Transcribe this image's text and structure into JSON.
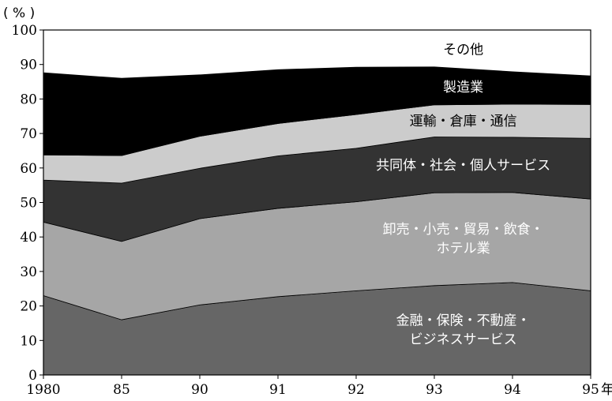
{
  "chart_data": {
    "type": "area",
    "stacked": true,
    "unit_label": "( % )",
    "x": [
      "1980",
      "85",
      "90",
      "91",
      "92",
      "93",
      "94",
      "95"
    ],
    "x_suffix": "年",
    "ylim": [
      0,
      100
    ],
    "yticks": [
      0,
      10,
      20,
      30,
      40,
      50,
      60,
      70,
      80,
      90,
      100
    ],
    "grid": false,
    "series": [
      {
        "name": "金融・保険・不動産・|ビジネスサービス",
        "color": "#666666",
        "text_color": "#ffffff",
        "values": [
          23,
          16,
          20.3,
          22.7,
          24.4,
          25.9,
          26.8,
          24.4
        ]
      },
      {
        "name": "卸売・小売・貿易・飲食・|ホテル業",
        "color": "#a6a6a6",
        "text_color": "#ffffff",
        "values": [
          21.3,
          22.7,
          25,
          25.6,
          25.8,
          26.9,
          26.1,
          26.6
        ]
      },
      {
        "name": "共同体・社会・個人サービス",
        "color": "#333333",
        "text_color": "#ffffff",
        "values": [
          12.2,
          16.9,
          14.6,
          15.2,
          15.5,
          16.2,
          16,
          17.6
        ]
      },
      {
        "name": "運輸・倉庫・通信",
        "color": "#cccccc",
        "text_color": "#000000",
        "values": [
          7.3,
          8,
          9.3,
          9.4,
          9.8,
          9.3,
          9.6,
          9.8
        ]
      },
      {
        "name": "製造業",
        "color": "#000000",
        "text_color": "#ffffff",
        "values": [
          23.8,
          22.4,
          17.8,
          15.6,
          13.7,
          11,
          9.4,
          8.3
        ]
      },
      {
        "name": "その他",
        "color": "#ffffff",
        "text_color": "#000000",
        "values": [
          12.4,
          14,
          13,
          11.5,
          10.8,
          10.7,
          12.1,
          13.3
        ]
      }
    ]
  }
}
